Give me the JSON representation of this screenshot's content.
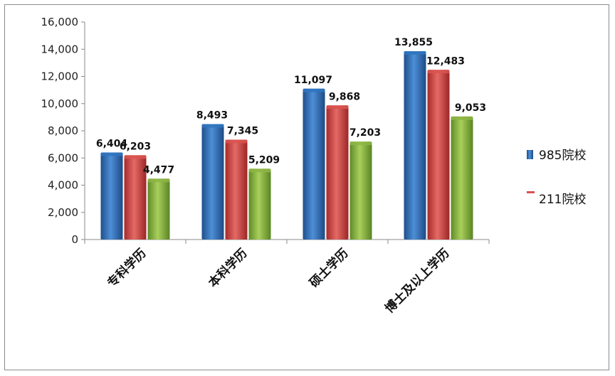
{
  "chart_data": {
    "type": "bar",
    "categories": [
      "专科学历",
      "本科学历",
      "硕士学历",
      "博士及以上学历"
    ],
    "series": [
      {
        "name": "985院校",
        "values": [
          6404,
          8493,
          11097,
          13855
        ],
        "labels": [
          "6,404",
          "8,493",
          "11,097",
          "13,855"
        ],
        "color": "#2f74c0"
      },
      {
        "name": "211院校",
        "values": [
          6203,
          7345,
          9868,
          12483
        ],
        "labels": [
          "6,203",
          "7,345",
          "9,868",
          "12,483"
        ],
        "color": "#d9534f"
      },
      {
        "name": "",
        "values": [
          4477,
          5209,
          7203,
          9053
        ],
        "labels": [
          "4,477",
          "5,209",
          "7,203",
          "9,053"
        ],
        "color": "#8db544"
      }
    ],
    "ylim": [
      0,
      16000
    ],
    "yticks": [
      0,
      2000,
      4000,
      6000,
      8000,
      10000,
      12000,
      14000,
      16000
    ],
    "ytick_labels": [
      "0",
      "2,000",
      "4,000",
      "6,000",
      "8,000",
      "10,000",
      "12,000",
      "14,000",
      "16,000"
    ],
    "grid": false,
    "legend_position": "right",
    "title": "",
    "xlabel": "",
    "ylabel": ""
  }
}
